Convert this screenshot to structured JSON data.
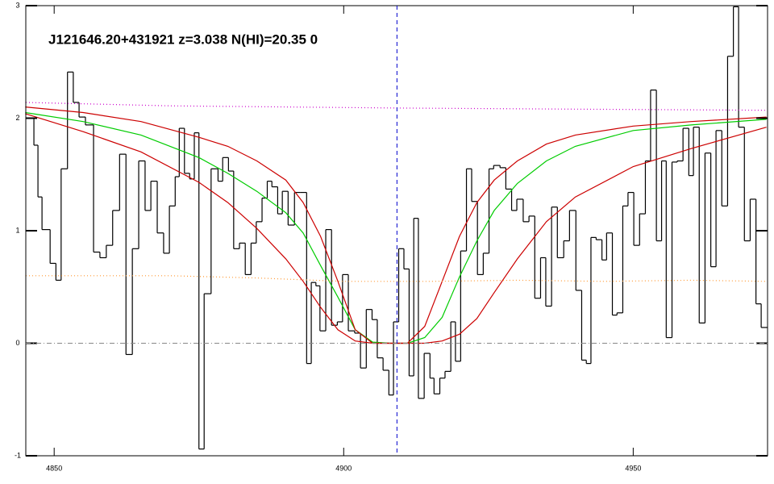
{
  "chart_data": {
    "type": "spectrum",
    "title": "J121646.20+431921 z=3.038 N(HI)=20.35 0",
    "xlim": [
      4845.1,
      4973.2
    ],
    "ylim": [
      -1,
      3
    ],
    "xticks": [
      4850,
      4900,
      4950
    ],
    "yticks": [
      -1,
      0,
      1,
      2,
      3
    ],
    "vlines": [
      4909.2
    ],
    "hlines": [
      0
    ],
    "series": [
      {
        "kind": "steps",
        "color": "#000000",
        "bins": [
          4845.1,
          4846.5,
          4847.2,
          4847.9,
          4849.3,
          4850.3,
          4851.2,
          4852.3,
          4853.3,
          4854.3,
          4855.4,
          4856.8,
          4857.9,
          4859.0,
          4860.1,
          4861.3,
          4862.4,
          4863.5,
          4864.6,
          4865.7,
          4866.7,
          4867.8,
          4868.9,
          4869.9,
          4870.9,
          4871.6,
          4872.5,
          4873.4,
          4874.2,
          4875.0,
          4875.9,
          4877.1,
          4878.3,
          4879.1,
          4880.1,
          4881.0,
          4882.0,
          4883.0,
          4884.0,
          4884.9,
          4885.9,
          4886.8,
          4887.6,
          4888.6,
          4889.4,
          4890.4,
          4891.5,
          4892.5,
          4893.6,
          4894.4,
          4895.2,
          4895.9,
          4896.9,
          4897.9,
          4898.9,
          4899.8,
          4900.8,
          4901.9,
          4902.9,
          4903.9,
          4904.9,
          4905.8,
          4906.8,
          4907.8,
          4908.6,
          4909.5,
          4910.4,
          4911.3,
          4912.1,
          4912.9,
          4913.9,
          4914.9,
          4915.6,
          4916.6,
          4917.5,
          4918.5,
          4919.3,
          4920.2,
          4921.2,
          4922.1,
          4923.1,
          4924.1,
          4925.1,
          4925.9,
          4927.0,
          4928.0,
          4929.0,
          4929.9,
          4931.0,
          4932.0,
          4933.0,
          4934.0,
          4934.9,
          4935.9,
          4936.9,
          4938.0,
          4939.0,
          4940.1,
          4941.1,
          4941.9,
          4942.7,
          4943.6,
          4944.6,
          4945.4,
          4946.4,
          4947.2,
          4948.2,
          4949.1,
          4950.1,
          4951.1,
          4952.1,
          4953.0,
          4954.0,
          4954.9,
          4955.7,
          4956.7,
          4957.6,
          4958.6,
          4959.6,
          4960.4,
          4961.4,
          4962.4,
          4963.4,
          4964.3,
          4965.3,
          4966.3,
          4967.3,
          4968.2,
          4969.2,
          4970.2,
          4971.2,
          4972.1,
          4973.2
        ],
        "values": [
          2.0,
          1.76,
          1.3,
          1.01,
          0.71,
          0.56,
          1.55,
          2.41,
          2.14,
          2.01,
          1.94,
          0.81,
          0.76,
          0.87,
          1.18,
          1.68,
          -0.1,
          0.84,
          1.62,
          1.18,
          1.44,
          0.98,
          0.8,
          1.22,
          1.48,
          1.91,
          1.51,
          1.46,
          1.87,
          -0.94,
          0.44,
          1.55,
          1.44,
          1.65,
          1.53,
          0.84,
          0.89,
          0.61,
          0.89,
          1.08,
          1.29,
          1.44,
          1.39,
          1.15,
          1.35,
          1.05,
          1.34,
          1.34,
          -0.18,
          0.54,
          0.51,
          0.11,
          1.01,
          0.16,
          0.19,
          0.61,
          0.11,
          0.09,
          -0.22,
          0.3,
          0.21,
          -0.13,
          -0.24,
          -0.46,
          0.19,
          0.84,
          0.66,
          -0.29,
          1.11,
          -0.49,
          -0.09,
          -0.31,
          -0.45,
          -0.31,
          -0.25,
          0.19,
          -0.16,
          0.82,
          1.55,
          1.26,
          0.61,
          0.8,
          1.55,
          1.58,
          1.56,
          1.37,
          1.18,
          1.28,
          1.08,
          1.13,
          0.4,
          0.76,
          0.33,
          1.21,
          0.76,
          0.91,
          1.18,
          0.47,
          -0.15,
          -0.18,
          0.94,
          0.92,
          0.74,
          0.98,
          0.25,
          0.27,
          1.22,
          1.34,
          0.87,
          1.15,
          1.62,
          2.25,
          0.91,
          1.62,
          0.05,
          1.61,
          1.62,
          1.91,
          1.49,
          1.92,
          0.18,
          1.69,
          0.68,
          1.89,
          1.22,
          2.55,
          2.99,
          1.92,
          0.91,
          1.28,
          0.35,
          0.14
        ]
      },
      {
        "kind": "line",
        "color": "#00cc00",
        "x": [
          4845,
          4855,
          4865,
          4875,
          4880,
          4885,
          4890,
          4893,
          4896,
          4899,
          4902,
          4905,
          4908,
          4911,
          4914,
          4917,
          4920,
          4923,
          4926,
          4930,
          4935,
          4940,
          4950,
          4960,
          4973
        ],
        "values": [
          2.05,
          1.97,
          1.85,
          1.65,
          1.51,
          1.35,
          1.16,
          0.98,
          0.69,
          0.41,
          0.12,
          0.01,
          0,
          0,
          0.05,
          0.23,
          0.59,
          0.91,
          1.18,
          1.42,
          1.62,
          1.75,
          1.89,
          1.94,
          1.99
        ]
      },
      {
        "kind": "line",
        "color": "#cc0000",
        "x": [
          4845,
          4855,
          4865,
          4875,
          4880,
          4885,
          4890,
          4893,
          4896,
          4899,
          4902,
          4905,
          4908,
          4911,
          4914,
          4917,
          4920,
          4923,
          4926,
          4930,
          4935,
          4940,
          4950,
          4960,
          4973
        ],
        "values": [
          2.1,
          2.05,
          1.97,
          1.83,
          1.75,
          1.62,
          1.45,
          1.25,
          0.95,
          0.55,
          0.12,
          0,
          0,
          0,
          0.15,
          0.55,
          0.95,
          1.25,
          1.45,
          1.62,
          1.77,
          1.85,
          1.93,
          1.97,
          2.01
        ]
      },
      {
        "kind": "line",
        "color": "#cc0000",
        "x": [
          4845,
          4855,
          4865,
          4875,
          4880,
          4885,
          4890,
          4893,
          4896,
          4899,
          4902,
          4905,
          4908,
          4911,
          4914,
          4917,
          4920,
          4923,
          4926,
          4930,
          4935,
          4940,
          4950,
          4960,
          4973
        ],
        "values": [
          2.04,
          1.88,
          1.7,
          1.43,
          1.25,
          1.02,
          0.75,
          0.55,
          0.32,
          0.12,
          0.02,
          0,
          0,
          0,
          0,
          0.02,
          0.08,
          0.22,
          0.45,
          0.75,
          1.08,
          1.3,
          1.57,
          1.73,
          1.92
        ]
      },
      {
        "kind": "dotted",
        "color": "#cc00cc",
        "x": [
          4845.1,
          4870,
          4909,
          4940,
          4973.2
        ],
        "values": [
          2.14,
          2.11,
          2.09,
          2.08,
          2.07
        ]
      },
      {
        "kind": "dotted",
        "color": "#ff9933",
        "x": [
          4845.1,
          4855,
          4870,
          4885,
          4900,
          4915,
          4930,
          4945,
          4960,
          4973.2
        ],
        "values": [
          0.6,
          0.6,
          0.6,
          0.58,
          0.55,
          0.55,
          0.56,
          0.55,
          0.56,
          0.55
        ]
      }
    ]
  }
}
